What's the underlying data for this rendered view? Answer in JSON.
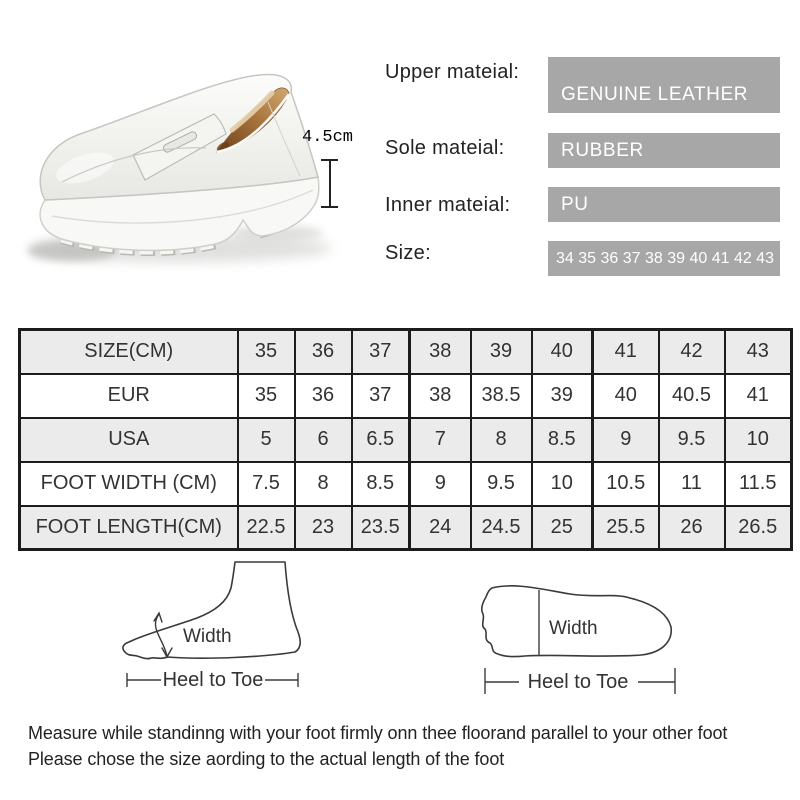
{
  "product_specs": {
    "heel_height_label": "4.5cm",
    "rows": [
      {
        "label": "Upper mateial:",
        "value": "GENUINE LEATHER"
      },
      {
        "label": "Sole mateial:",
        "value": "RUBBER"
      },
      {
        "label": "Inner mateial:",
        "value": "PU"
      },
      {
        "label": "Size:",
        "value": "34 35 36 37 38 39 40 41 42 43"
      }
    ]
  },
  "size_table": {
    "rows": [
      {
        "label": "SIZE(CM)",
        "values": [
          "35",
          "36",
          "37",
          "38",
          "39",
          "40",
          "41",
          "42",
          "43"
        ]
      },
      {
        "label": "EUR",
        "values": [
          "35",
          "36",
          "37",
          "38",
          "38.5",
          "39",
          "40",
          "40.5",
          "41"
        ]
      },
      {
        "label": "USA",
        "values": [
          "5",
          "6",
          "6.5",
          "7",
          "8",
          "8.5",
          "9",
          "9.5",
          "10"
        ]
      },
      {
        "label": "FOOT WIDTH (CM)",
        "values": [
          "7.5",
          "8",
          "8.5",
          "9",
          "9.5",
          "10",
          "10.5",
          "11",
          "11.5"
        ]
      },
      {
        "label": "FOOT LENGTH(CM)",
        "values": [
          "22.5",
          "23",
          "23.5",
          "24",
          "24.5",
          "25",
          "25.5",
          "26",
          "26.5"
        ]
      }
    ]
  },
  "measure_diagrams": {
    "side_view": {
      "width_label": "Width",
      "length_label": "Heel to Toe"
    },
    "sole_view": {
      "width_label": "Width",
      "length_label": "Heel to Toe"
    }
  },
  "footer": {
    "line1": "Measure while standinng with your foot firmly onn thee floorand parallel to your other foot",
    "line2": "Please chose the size aording to the actual length of the foot"
  },
  "colors": {
    "spec_box_bg": "#a7a7a7",
    "spec_box_text": "#ffffff",
    "table_alt_row_bg": "#ebebeb",
    "table_border": "#1c1c1c",
    "body_text": "#333333"
  }
}
